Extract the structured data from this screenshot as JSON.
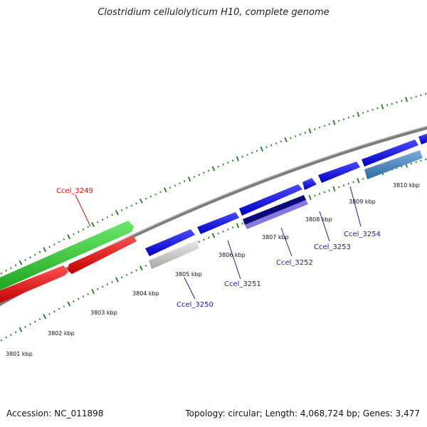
{
  "title": "Clostridium cellulolyticum H10, complete genome",
  "footer": {
    "accession": "Accession: NC_011898",
    "topology": "Topology: circular; Length: 4,068,724 bp; Genes: 3,477"
  },
  "kbp_labels": [
    {
      "text": "3801 kbp"
    },
    {
      "text": "3802 kbp"
    },
    {
      "text": "3803 kbp"
    },
    {
      "text": "3804 kbp"
    },
    {
      "text": "3805 kbp"
    },
    {
      "text": "3806 kbp"
    },
    {
      "text": "3807 kbp"
    },
    {
      "text": "3808 kbp"
    },
    {
      "text": "3809 kbp"
    },
    {
      "text": "3810 kbp"
    }
  ],
  "gene_labels": [
    {
      "text": "Ccel_3249",
      "color": "#e01010"
    },
    {
      "text": "Ccel_3250",
      "color": "#1a1aa8"
    },
    {
      "text": "Ccel_3251",
      "color": "#1a1aa8"
    },
    {
      "text": "Ccel_3252",
      "color": "#1a1aa8"
    },
    {
      "text": "Ccel_3253",
      "color": "#1a1aa8"
    },
    {
      "text": "Ccel_3254",
      "color": "#1a1aa8"
    }
  ],
  "colors": {
    "tick": "#1e7a1e",
    "backbone": "#8a8a8a",
    "green_gene": "#2ecc2e",
    "red_gene": "#ee1111",
    "blue_gene": "#1a1aee",
    "gray_gene": "#c8c8c8",
    "navy_gene": "#0a0a7a",
    "purple_gene": "#8878dd",
    "steel_gene": "#4a86c0"
  }
}
